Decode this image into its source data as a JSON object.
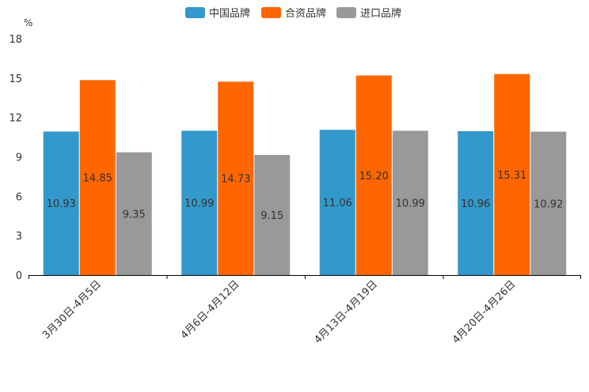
{
  "chart_data": {
    "type": "bar",
    "title": "",
    "unit": "%",
    "xlabel": "",
    "ylabel": "%",
    "ylim": [
      0,
      18
    ],
    "yticks": [
      0,
      3,
      6,
      9,
      12,
      15,
      18
    ],
    "legend_position": "top-center",
    "categories": [
      "3月30日-4月5日",
      "4月6日-4月12日",
      "4月13日-4月19日",
      "4月20日-4月26日"
    ],
    "series": [
      {
        "name": "中国品牌",
        "color": "#3399cc",
        "values": [
          10.93,
          10.99,
          11.06,
          10.96
        ]
      },
      {
        "name": "合资品牌",
        "color": "#ff6600",
        "values": [
          14.85,
          14.73,
          15.2,
          15.31
        ]
      },
      {
        "name": "进口品牌",
        "color": "#999999",
        "values": [
          9.35,
          9.15,
          10.99,
          10.92
        ]
      }
    ]
  }
}
